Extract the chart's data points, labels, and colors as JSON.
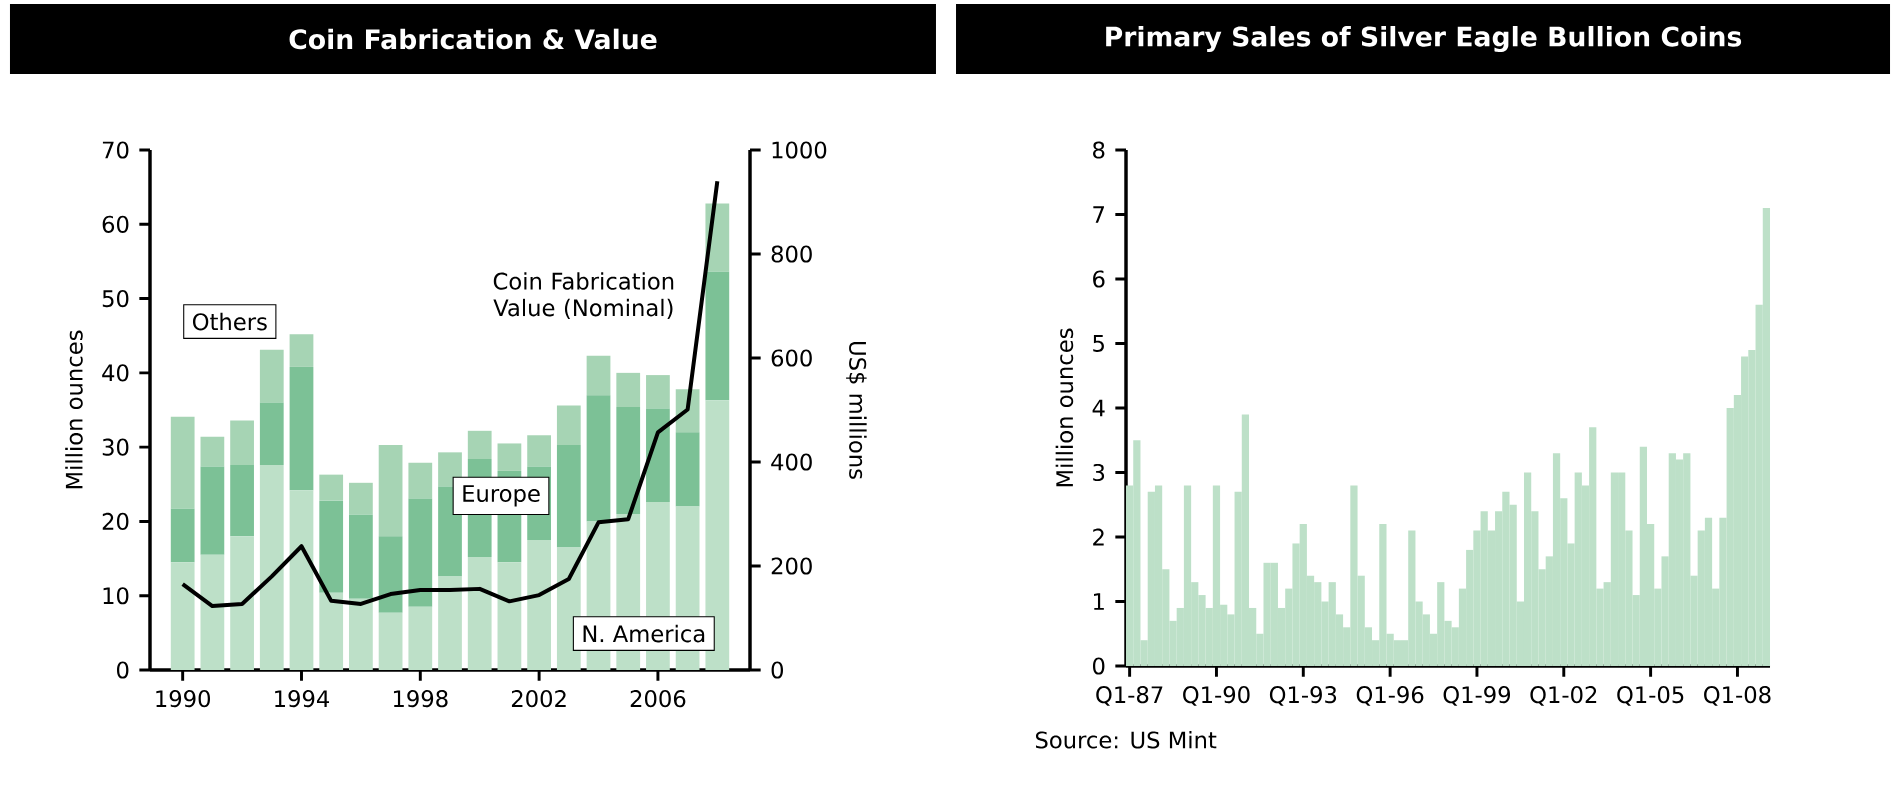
{
  "chart_data": [
    {
      "type": "bar",
      "title": "Coin Fabrication & Value",
      "stacked": true,
      "ylabel": "Million ounces",
      "y2label": "US$ millions",
      "x": [
        1990,
        1991,
        1992,
        1993,
        1994,
        1995,
        1996,
        1997,
        1998,
        1999,
        2000,
        2001,
        2002,
        2003,
        2004,
        2005,
        2006,
        2007,
        2008
      ],
      "xlim": [
        1988.9,
        2009.1
      ],
      "xticks": [
        1990,
        1994,
        1998,
        2002,
        2006
      ],
      "ylim": [
        0,
        70
      ],
      "yticks": [
        0,
        10,
        20,
        30,
        40,
        50,
        60,
        70
      ],
      "y2lim": [
        0,
        1000
      ],
      "y2ticks": [
        0,
        200,
        400,
        600,
        800,
        1000
      ],
      "series": [
        {
          "name": "N. America",
          "color": "#bde0c8",
          "values": [
            14.5,
            15.5,
            18.0,
            27.6,
            24.2,
            10.4,
            9.6,
            7.7,
            8.5,
            12.6,
            15.2,
            14.5,
            17.5,
            16.5,
            20.0,
            21.0,
            22.6,
            22.0,
            36.3
          ]
        },
        {
          "name": "Europe",
          "color": "#7cc196",
          "values": [
            7.2,
            11.9,
            9.6,
            8.4,
            16.6,
            12.4,
            11.3,
            10.3,
            14.6,
            12.1,
            13.2,
            12.3,
            9.9,
            13.8,
            17.0,
            14.4,
            12.6,
            10.0,
            17.3
          ]
        },
        {
          "name": "Others",
          "color": "#a6d4b4",
          "values": [
            12.4,
            4.0,
            6.0,
            7.1,
            4.4,
            3.5,
            4.3,
            12.3,
            4.8,
            4.6,
            3.8,
            3.7,
            4.2,
            5.3,
            5.3,
            4.6,
            4.5,
            5.8,
            9.2
          ]
        },
        {
          "name": "Coin Fabrication Value (Nominal)",
          "type": "line",
          "axis": "y2",
          "color": "#000000",
          "values": [
            165,
            123,
            127,
            180,
            238,
            133,
            127,
            146,
            154,
            154,
            156,
            132,
            144,
            175,
            284,
            290,
            457,
            501,
            940
          ]
        }
      ]
    },
    {
      "type": "bar",
      "title": "Primary Sales of Silver Eagle Bullion Coins",
      "ylabel": "Million ounces",
      "color": "#bde0c8",
      "ylim": [
        0,
        8
      ],
      "yticks": [
        0,
        1,
        2,
        3,
        4,
        5,
        6,
        7,
        8
      ],
      "categories": [
        "Q1-87",
        null,
        null,
        null,
        null,
        null,
        null,
        null,
        null,
        null,
        null,
        null,
        "Q1-90",
        null,
        null,
        null,
        null,
        null,
        null,
        null,
        null,
        null,
        null,
        null,
        "Q1-93",
        null,
        null,
        null,
        null,
        null,
        null,
        null,
        null,
        null,
        null,
        null,
        "Q1-96",
        null,
        null,
        null,
        null,
        null,
        null,
        null,
        null,
        null,
        null,
        null,
        "Q1-99",
        null,
        null,
        null,
        null,
        null,
        null,
        null,
        null,
        null,
        null,
        null,
        "Q1-02",
        null,
        null,
        null,
        null,
        null,
        null,
        null,
        null,
        null,
        null,
        null,
        "Q1-05",
        null,
        null,
        null,
        null,
        null,
        null,
        null,
        null,
        null,
        null,
        null,
        "Q1-08",
        null,
        null,
        null,
        null
      ],
      "values": [
        2.8,
        3.5,
        0.4,
        2.7,
        2.8,
        1.5,
        0.7,
        0.9,
        2.8,
        1.3,
        1.1,
        0.9,
        2.8,
        0.95,
        0.8,
        2.7,
        3.9,
        0.9,
        0.5,
        1.6,
        1.6,
        0.9,
        1.2,
        1.9,
        2.2,
        1.4,
        1.3,
        1.0,
        1.3,
        0.8,
        0.6,
        2.8,
        1.4,
        0.6,
        0.4,
        2.2,
        0.5,
        0.4,
        0.4,
        2.1,
        1.0,
        0.8,
        0.5,
        1.3,
        0.7,
        0.6,
        1.2,
        1.8,
        2.1,
        2.4,
        2.1,
        2.4,
        2.7,
        2.5,
        1.0,
        3.0,
        2.4,
        1.5,
        1.7,
        3.3,
        2.6,
        1.9,
        3.0,
        2.8,
        3.7,
        1.2,
        1.3,
        3.0,
        3.0,
        2.1,
        1.1,
        3.4,
        2.2,
        1.2,
        1.7,
        3.3,
        3.2,
        3.3,
        1.4,
        2.1,
        2.3,
        1.2,
        2.3,
        4.0,
        4.2,
        4.8,
        4.9,
        5.6,
        7.1
      ],
      "annotations": [
        "Source: US Mint"
      ]
    }
  ]
}
